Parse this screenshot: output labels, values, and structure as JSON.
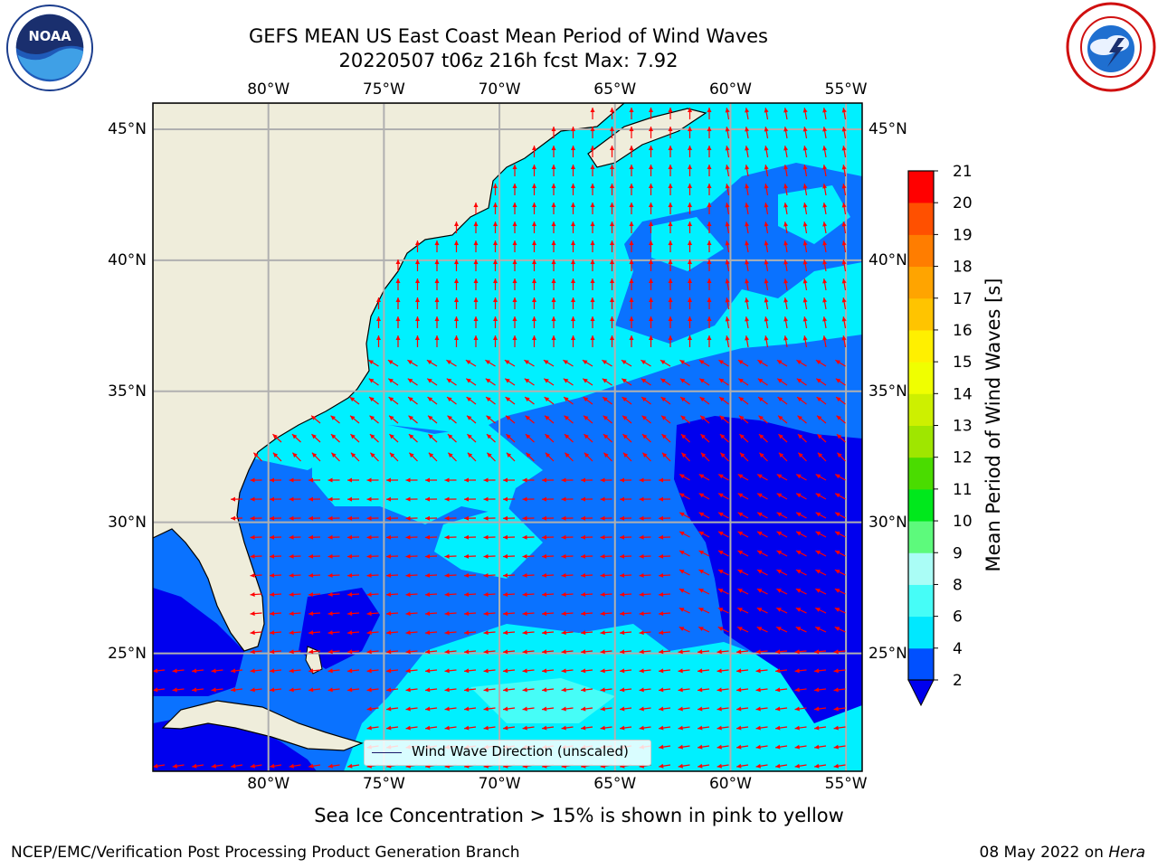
{
  "header": {
    "title": "GEFS MEAN US East Coast Mean Period of Wind Waves",
    "subtitle": "20220507 t06z 216h fcst   Max: 7.92"
  },
  "logos": {
    "noaa": {
      "text": "NOAA",
      "icon": "noaa-logo"
    },
    "nws": {
      "icon": "nws-logo"
    }
  },
  "map": {
    "lon_range": [
      -85,
      -54.3
    ],
    "lat_range": [
      20.5,
      46
    ],
    "lon_ticks": [
      {
        "value": -80,
        "label": "80°W"
      },
      {
        "value": -75,
        "label": "75°W"
      },
      {
        "value": -70,
        "label": "70°W"
      },
      {
        "value": -65,
        "label": "65°W"
      },
      {
        "value": -60,
        "label": "60°W"
      },
      {
        "value": -55,
        "label": "55°W"
      }
    ],
    "lat_ticks": [
      {
        "value": 45,
        "label": "45°N"
      },
      {
        "value": 40,
        "label": "40°N"
      },
      {
        "value": 35,
        "label": "35°N"
      },
      {
        "value": 30,
        "label": "30°N"
      },
      {
        "value": 25,
        "label": "25°N"
      }
    ],
    "land_color": "#efeddb",
    "grid_color": "#b0b0b0",
    "arrow_color": "#ff0000",
    "legend_label": "Wind Wave Direction (unscaled)"
  },
  "colorbar": {
    "label": "Mean Period of Wind Waves [s]",
    "ticks": [
      "2",
      "4",
      "6",
      "8",
      "9",
      "10",
      "11",
      "12",
      "13",
      "14",
      "15",
      "16",
      "17",
      "18",
      "19",
      "20",
      "21"
    ],
    "colors": [
      "#0050ff",
      "#00e8ff",
      "#46fdf7",
      "#aafdf6",
      "#5dfa7c",
      "#00e81c",
      "#4adc00",
      "#9fe600",
      "#cdf000",
      "#f0ff00",
      "#fff000",
      "#ffc400",
      "#ffa400",
      "#ff7d00",
      "#ff5000",
      "#ff2800",
      "#ff0000"
    ],
    "under_color": "#0000ee"
  },
  "footer": {
    "note": "Sea Ice Concentration > 15% is shown in pink to yellow",
    "credit": "NCEP/EMC/Verification Post Processing Product Generation Branch",
    "date": "08 May 2022 on",
    "machine": "Hera"
  }
}
